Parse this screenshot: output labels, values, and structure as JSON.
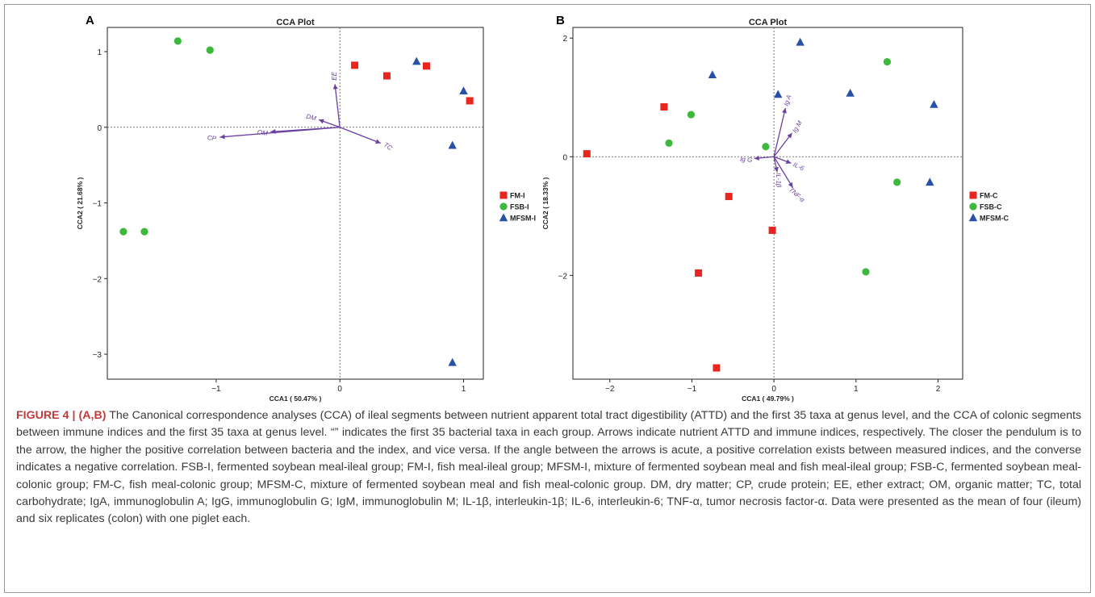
{
  "figure": {
    "caption_label": "FIGURE 4 | (A,B)",
    "caption_text": " The Canonical correspondence analyses (CCA) of ileal segments between nutrient apparent total tract digestibility (ATTD) and the first 35 taxa at genus level, and the CCA of colonic segments between immune indices and the first 35 taxa at genus level. “” indicates the first 35 bacterial taxa in each group. Arrows indicate nutrient ATTD and immune indices, respectively. The closer the pendulum is to the arrow, the higher the positive correlation between bacteria and the index, and vice versa. If the angle between the arrows is acute, a positive correlation exists between measured indices, and the converse indicates a negative correlation. FSB-I, fermented soybean meal-ileal group; FM-I, fish meal-ileal group; MFSM-I, mixture of fermented soybean meal and fish meal-ileal group; FSB-C, fermented soybean meal-colonic group; FM-C, fish meal-colonic group; MFSM-C, mixture of fermented soybean meal and fish meal-colonic group. DM, dry matter; CP, crude protein; EE, ether extract; OM, organic matter; TC, total carbohydrate; IgA, immunoglobulin A; IgG, immunoglobulin G; IgM, immunoglobulin M; IL-1β, interleukin-1β; IL-6, interleukin-6; TNF-α, tumor necrosis factor-α. Data were presented as the mean of four (ileum) and six replicates (colon) with one piglet each."
  },
  "colors": {
    "fm": "#e8251f",
    "fsb": "#3cb83c",
    "mfsm": "#2750a8",
    "arrow": "#6a3fa0",
    "axis": "#222222"
  },
  "chart_data": [
    {
      "type": "scatter",
      "panel_label": "A",
      "title": "CCA Plot",
      "xlabel": "CCA1 ( 50.47% )",
      "ylabel": "CCA2 ( 21.68% )",
      "xlim": [
        -1.88,
        1.16
      ],
      "ylim": [
        -3.33,
        1.32
      ],
      "xticks": [
        -1,
        0,
        1
      ],
      "yticks": [
        -3,
        -2,
        -1,
        0,
        1
      ],
      "legend_position": "right",
      "series": [
        {
          "name": "FM-I",
          "marker": "square",
          "color": "#e8251f",
          "points": [
            [
              0.12,
              0.82
            ],
            [
              0.38,
              0.68
            ],
            [
              0.7,
              0.81
            ],
            [
              1.05,
              0.35
            ]
          ]
        },
        {
          "name": "FSB-I",
          "marker": "circle",
          "color": "#3cb83c",
          "points": [
            [
              -1.31,
              1.14
            ],
            [
              -1.05,
              1.02
            ],
            [
              -1.75,
              -1.38
            ],
            [
              -1.58,
              -1.38
            ]
          ]
        },
        {
          "name": "MFSM-I",
          "marker": "triangle",
          "color": "#2750a8",
          "points": [
            [
              0.62,
              0.87
            ],
            [
              1.0,
              0.48
            ],
            [
              0.91,
              -0.24
            ],
            [
              0.91,
              -3.11
            ]
          ]
        }
      ],
      "arrows": [
        {
          "label": "EE",
          "x": -0.04,
          "y": 0.57,
          "label_angle": -90
        },
        {
          "label": "DM",
          "x": -0.17,
          "y": 0.1,
          "label_angle": 15
        },
        {
          "label": "OM",
          "x": -0.56,
          "y": -0.06,
          "label_angle": 8
        },
        {
          "label": "CP",
          "x": -0.97,
          "y": -0.13,
          "label_angle": 8
        },
        {
          "label": "TC",
          "x": 0.33,
          "y": -0.21,
          "label_angle": 35
        }
      ]
    },
    {
      "type": "scatter",
      "panel_label": "B",
      "title": "CCA Plot",
      "xlabel": "CCA1 ( 49.79% )",
      "ylabel": "CCA2 ( 18.33% )",
      "xlim": [
        -2.45,
        2.3
      ],
      "ylim": [
        -3.75,
        2.18
      ],
      "xticks": [
        -2,
        -1,
        0,
        1,
        2
      ],
      "yticks": [
        -2,
        0,
        2
      ],
      "legend_position": "right",
      "series": [
        {
          "name": "FM-C",
          "marker": "square",
          "color": "#e8251f",
          "points": [
            [
              -2.28,
              0.05
            ],
            [
              -1.34,
              0.84
            ],
            [
              -0.55,
              -0.67
            ],
            [
              -0.02,
              -1.24
            ],
            [
              -0.92,
              -1.96
            ],
            [
              -0.7,
              -3.56
            ]
          ]
        },
        {
          "name": "FSB-C",
          "marker": "circle",
          "color": "#3cb83c",
          "points": [
            [
              -1.01,
              0.71
            ],
            [
              -1.28,
              0.23
            ],
            [
              -0.1,
              0.17
            ],
            [
              1.38,
              1.6
            ],
            [
              1.5,
              -0.43
            ],
            [
              1.12,
              -1.94
            ]
          ]
        },
        {
          "name": "MFSM-C",
          "marker": "triangle",
          "color": "#2750a8",
          "points": [
            [
              -0.75,
              1.38
            ],
            [
              0.05,
              1.05
            ],
            [
              0.32,
              1.93
            ],
            [
              0.93,
              1.07
            ],
            [
              1.95,
              0.88
            ],
            [
              1.9,
              -0.43
            ]
          ]
        }
      ],
      "arrows": [
        {
          "label": "Ig A",
          "x": 0.14,
          "y": 0.82,
          "label_angle": -72
        },
        {
          "label": "Ig M",
          "x": 0.22,
          "y": 0.4,
          "label_angle": -60
        },
        {
          "label": "Ig G",
          "x": -0.24,
          "y": -0.03,
          "label_angle": 5
        },
        {
          "label": "IL-6",
          "x": 0.21,
          "y": -0.11,
          "label_angle": 25
        },
        {
          "label": "IL-1β",
          "x": 0.04,
          "y": -0.26,
          "label_angle": 88
        },
        {
          "label": "TNF-α",
          "x": 0.23,
          "y": -0.52,
          "label_angle": 42
        }
      ]
    }
  ]
}
